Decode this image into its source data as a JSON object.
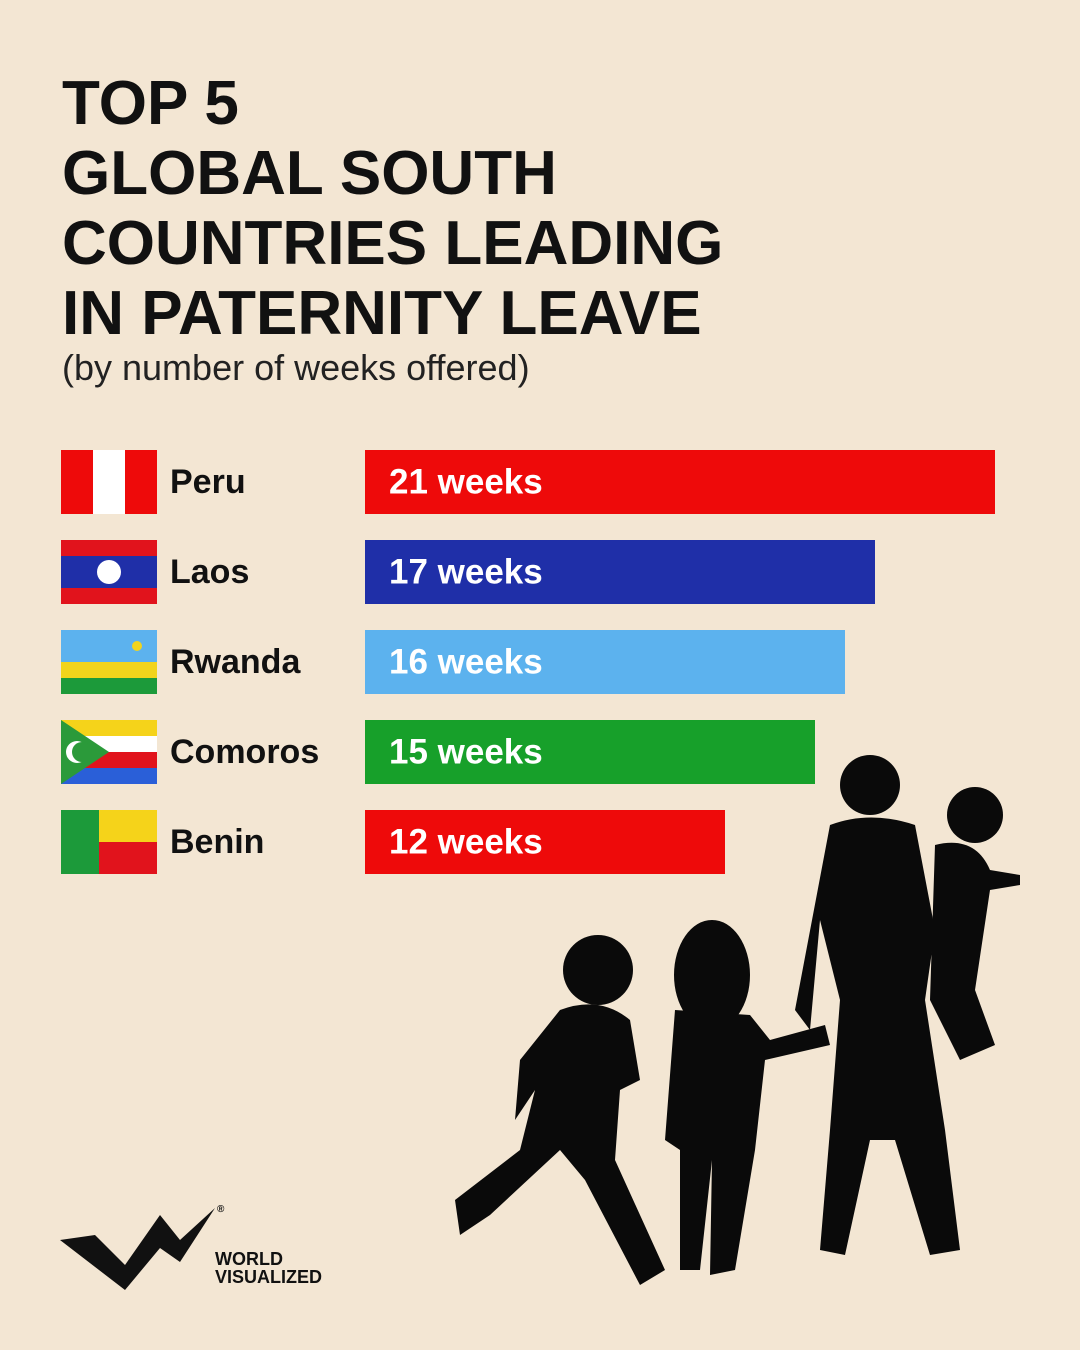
{
  "chart_data": {
    "type": "bar",
    "title": [
      "TOP 5",
      "GLOBAL SOUTH",
      "COUNTRIES LEADING",
      "IN PATERNITY LEAVE"
    ],
    "subtitle": "(by number of weeks offered)",
    "orientation": "horizontal",
    "categories": [
      "Peru",
      "Laos",
      "Rwanda",
      "Comoros",
      "Benin"
    ],
    "values": [
      21,
      17,
      16,
      15,
      12
    ],
    "value_labels": [
      "21 weeks",
      "17 weeks",
      "16 weeks",
      "15 weeks",
      "12 weeks"
    ],
    "colors": [
      "#ee0a0a",
      "#1f2fa8",
      "#5cb2ee",
      "#17a02a",
      "#ee0a0a"
    ]
  },
  "brand": {
    "name": [
      "WORLD",
      "VISUALIZED"
    ],
    "mark": "®"
  }
}
